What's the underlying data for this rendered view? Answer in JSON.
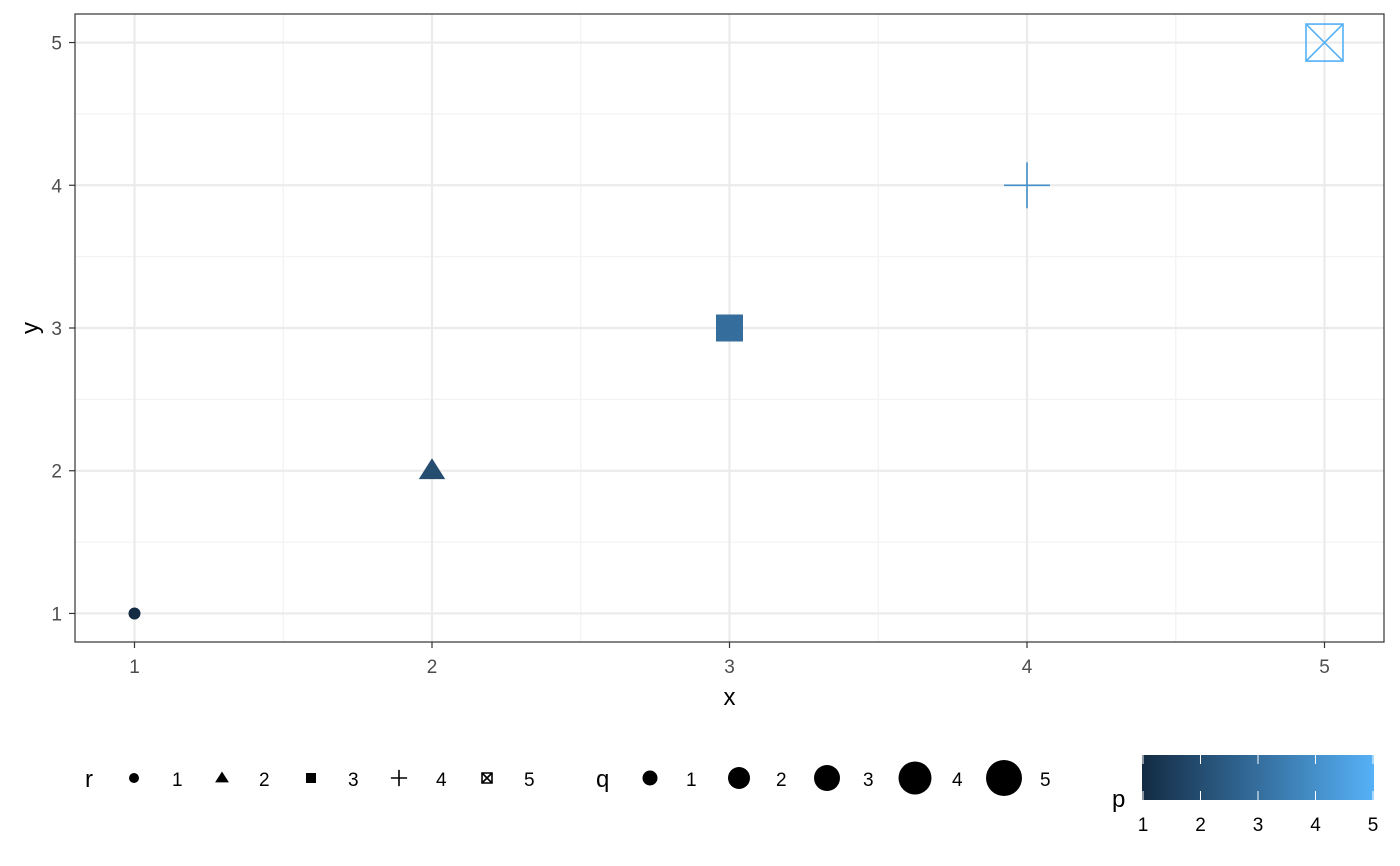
{
  "chart_data": {
    "type": "scatter",
    "title": "",
    "xlabel": "x",
    "ylabel": "y",
    "xlim": [
      0.8,
      5.2
    ],
    "ylim": [
      0.8,
      5.2
    ],
    "x_ticks": [
      "1",
      "2",
      "3",
      "4",
      "5"
    ],
    "y_ticks": [
      "1",
      "2",
      "3",
      "4",
      "5"
    ],
    "grid": true,
    "legend_placement": "bottom",
    "points": [
      {
        "x": 1,
        "y": 1,
        "shape": "circle",
        "size": 1,
        "p": 1
      },
      {
        "x": 2,
        "y": 2,
        "shape": "triangle",
        "size": 2,
        "p": 2
      },
      {
        "x": 3,
        "y": 3,
        "shape": "square",
        "size": 3,
        "p": 3
      },
      {
        "x": 4,
        "y": 4,
        "shape": "plus",
        "size": 4,
        "p": 4
      },
      {
        "x": 5,
        "y": 5,
        "shape": "square-cross",
        "size": 5,
        "p": 5
      }
    ],
    "legends": {
      "shape": {
        "title": "r",
        "entries": [
          {
            "label": "1",
            "shape": "circle"
          },
          {
            "label": "2",
            "shape": "triangle"
          },
          {
            "label": "3",
            "shape": "square"
          },
          {
            "label": "4",
            "shape": "plus"
          },
          {
            "label": "5",
            "shape": "square-cross"
          }
        ]
      },
      "size": {
        "title": "q",
        "entries": [
          {
            "label": "1",
            "size": 1
          },
          {
            "label": "2",
            "size": 2
          },
          {
            "label": "3",
            "size": 3
          },
          {
            "label": "4",
            "size": 4
          },
          {
            "label": "5",
            "size": 5
          }
        ]
      },
      "color": {
        "title": "p",
        "range": [
          1,
          5
        ],
        "ticks": [
          "1",
          "2",
          "3",
          "4",
          "5"
        ],
        "low_color": "#132b43",
        "high_color": "#56b1f7"
      }
    },
    "colors": {
      "panel_border": "#333333",
      "grid_major": "#ebebeb",
      "grid_minor": "#f3f3f3"
    }
  }
}
